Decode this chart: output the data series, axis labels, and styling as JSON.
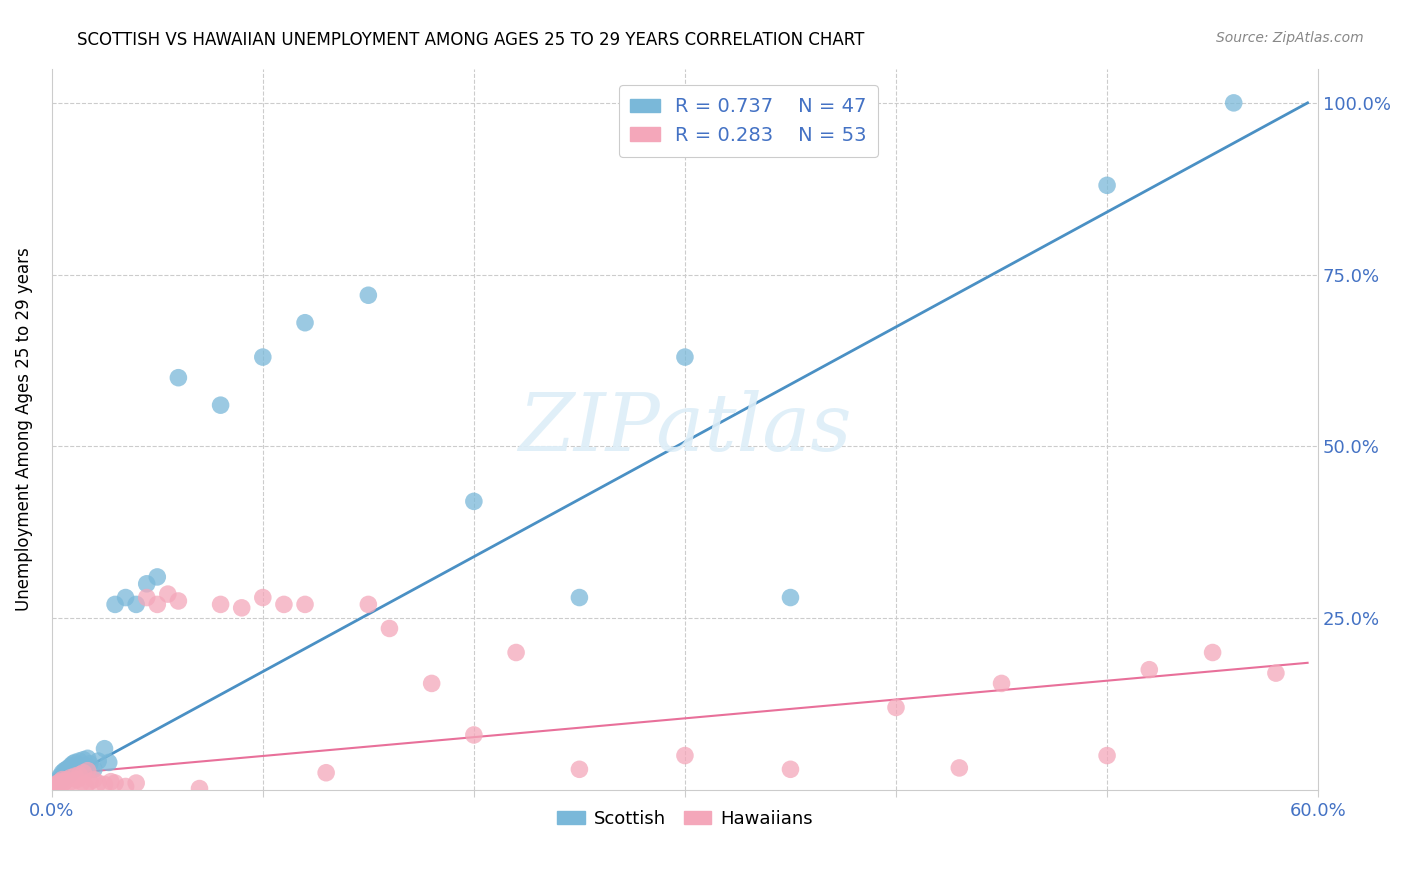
{
  "title": "SCOTTISH VS HAWAIIAN UNEMPLOYMENT AMONG AGES 25 TO 29 YEARS CORRELATION CHART",
  "source": "Source: ZipAtlas.com",
  "ylabel": "Unemployment Among Ages 25 to 29 years",
  "xlim": [
    0.0,
    0.6
  ],
  "ylim": [
    0.0,
    1.05
  ],
  "scottish_R": 0.737,
  "scottish_N": 47,
  "hawaiian_R": 0.283,
  "hawaiian_N": 53,
  "scottish_color": "#7ab8d9",
  "hawaiian_color": "#f4a7ba",
  "scottish_line_color": "#4a90c4",
  "hawaiian_line_color": "#e8709a",
  "watermark_color": "#ddeef8",
  "scottish_line_x0": 0.0,
  "scottish_line_y0": 0.005,
  "scottish_line_x1": 0.595,
  "scottish_line_y1": 1.0,
  "hawaiian_line_x0": 0.0,
  "hawaiian_line_y0": 0.022,
  "hawaiian_line_x1": 0.595,
  "hawaiian_line_y1": 0.185,
  "scottish_x": [
    0.001,
    0.002,
    0.003,
    0.003,
    0.004,
    0.004,
    0.005,
    0.005,
    0.006,
    0.006,
    0.007,
    0.007,
    0.008,
    0.008,
    0.009,
    0.009,
    0.01,
    0.01,
    0.011,
    0.011,
    0.012,
    0.013,
    0.014,
    0.015,
    0.016,
    0.017,
    0.018,
    0.02,
    0.022,
    0.025,
    0.027,
    0.03,
    0.035,
    0.04,
    0.045,
    0.05,
    0.06,
    0.08,
    0.1,
    0.12,
    0.15,
    0.2,
    0.25,
    0.3,
    0.35,
    0.5,
    0.56
  ],
  "scottish_y": [
    0.005,
    0.008,
    0.01,
    0.015,
    0.012,
    0.02,
    0.015,
    0.025,
    0.018,
    0.028,
    0.02,
    0.03,
    0.022,
    0.032,
    0.025,
    0.035,
    0.028,
    0.038,
    0.03,
    0.04,
    0.032,
    0.042,
    0.033,
    0.044,
    0.035,
    0.046,
    0.038,
    0.03,
    0.042,
    0.06,
    0.04,
    0.27,
    0.28,
    0.27,
    0.3,
    0.31,
    0.6,
    0.56,
    0.63,
    0.68,
    0.72,
    0.42,
    0.28,
    0.63,
    0.28,
    0.88,
    1.0
  ],
  "hawaiian_x": [
    0.001,
    0.002,
    0.003,
    0.004,
    0.004,
    0.005,
    0.005,
    0.006,
    0.007,
    0.008,
    0.009,
    0.01,
    0.011,
    0.012,
    0.013,
    0.014,
    0.015,
    0.016,
    0.017,
    0.018,
    0.02,
    0.022,
    0.025,
    0.028,
    0.03,
    0.035,
    0.04,
    0.045,
    0.05,
    0.055,
    0.06,
    0.07,
    0.08,
    0.09,
    0.1,
    0.11,
    0.12,
    0.13,
    0.15,
    0.16,
    0.18,
    0.2,
    0.22,
    0.25,
    0.3,
    0.35,
    0.4,
    0.43,
    0.45,
    0.5,
    0.52,
    0.55,
    0.58
  ],
  "hawaiian_y": [
    0.005,
    0.008,
    0.01,
    0.005,
    0.012,
    0.015,
    0.008,
    0.012,
    0.015,
    0.01,
    0.018,
    0.012,
    0.02,
    0.015,
    0.022,
    0.01,
    0.025,
    0.005,
    0.028,
    0.012,
    0.015,
    0.01,
    0.008,
    0.012,
    0.01,
    0.005,
    0.01,
    0.28,
    0.27,
    0.285,
    0.275,
    0.002,
    0.27,
    0.265,
    0.28,
    0.27,
    0.27,
    0.025,
    0.27,
    0.235,
    0.155,
    0.08,
    0.2,
    0.03,
    0.05,
    0.03,
    0.12,
    0.032,
    0.155,
    0.05,
    0.175,
    0.2,
    0.17
  ]
}
